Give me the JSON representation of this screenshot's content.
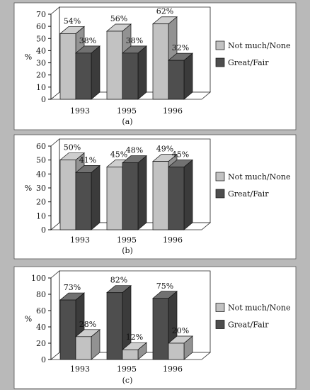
{
  "colors": {
    "page_background": "#b9b9b9",
    "panel_background": "#ffffff",
    "not_much_none": "#c2c2c2",
    "great_fair": "#4e4e4e"
  },
  "chart_data": [
    {
      "type": "bar",
      "caption": "(a)",
      "ylabel": "%",
      "ylim": [
        0,
        70
      ],
      "yticks": [
        0,
        10,
        20,
        30,
        40,
        50,
        60,
        70
      ],
      "categories": [
        "1993",
        "1995",
        "1996"
      ],
      "series": [
        {
          "name": "Not much/None",
          "color": "#c2c2c2",
          "values": [
            54,
            56,
            62
          ],
          "labels": [
            "54%",
            "56%",
            "62%"
          ]
        },
        {
          "name": "Great/Fair",
          "color": "#4e4e4e",
          "values": [
            38,
            38,
            32
          ],
          "labels": [
            "38%",
            "38%",
            "32%"
          ]
        }
      ],
      "legend": [
        {
          "name": "Not much/None",
          "color": "#c2c2c2"
        },
        {
          "name": "Great/Fair",
          "color": "#4e4e4e"
        }
      ],
      "legend_position": "right",
      "grid": false
    },
    {
      "type": "bar",
      "caption": "(b)",
      "ylabel": "%",
      "ylim": [
        0,
        60
      ],
      "yticks": [
        0,
        10,
        20,
        30,
        40,
        50,
        60
      ],
      "categories": [
        "1993",
        "1995",
        "1996"
      ],
      "series": [
        {
          "name": "Not much/None",
          "color": "#c2c2c2",
          "values": [
            50,
            45,
            49
          ],
          "labels": [
            "50%",
            "45%",
            "49%"
          ]
        },
        {
          "name": "Great/Fair",
          "color": "#4e4e4e",
          "values": [
            41,
            48,
            45
          ],
          "labels": [
            "41%",
            "48%",
            "45%"
          ]
        }
      ],
      "legend": [
        {
          "name": "Not much/None",
          "color": "#c2c2c2"
        },
        {
          "name": "Great/Fair",
          "color": "#4e4e4e"
        }
      ],
      "legend_position": "right",
      "grid": false
    },
    {
      "type": "bar",
      "caption": "(c)",
      "ylabel": "%",
      "ylim": [
        0,
        100
      ],
      "yticks": [
        0,
        20,
        40,
        60,
        80,
        100
      ],
      "categories": [
        "1993",
        "1995",
        "1996"
      ],
      "series": [
        {
          "name": "Great/Fair",
          "color": "#4e4e4e",
          "values": [
            73,
            82,
            75
          ],
          "labels": [
            "73%",
            "82%",
            "75%"
          ]
        },
        {
          "name": "Not much/None",
          "color": "#c2c2c2",
          "values": [
            28,
            12,
            20
          ],
          "labels": [
            "28%",
            "12%",
            "20%"
          ]
        }
      ],
      "legend": [
        {
          "name": "Not much/None",
          "color": "#c2c2c2"
        },
        {
          "name": "Great/Fair",
          "color": "#4e4e4e"
        }
      ],
      "legend_position": "right",
      "grid": false
    }
  ]
}
